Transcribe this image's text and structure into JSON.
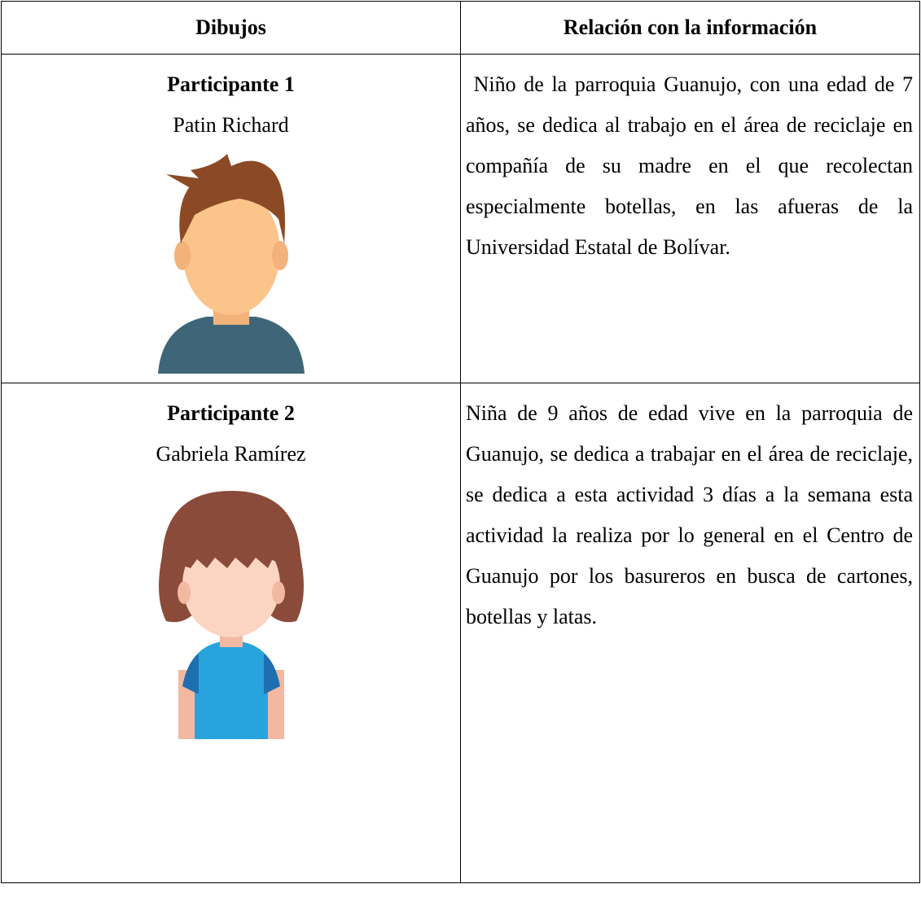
{
  "table": {
    "header": [
      "Dibujos",
      "Relación con la información"
    ],
    "rows": [
      {
        "title": "Participante 1",
        "name": "Patin Richard",
        "description": " Niño de la parroquia Guanujo, con una edad de 7 años, se dedica al trabajo en el área de reciclaje en compañía de su madre en el que recolectan especialmente botellas, en las afueras de la Universidad Estatal de Bolívar."
      },
      {
        "title": "Participante 2",
        "name": "Gabriela Ramírez",
        "description": "Niña de 9 años de edad vive en la parroquia de Guanujo, se dedica a trabajar en el área de reciclaje, se dedica a esta actividad 3 días a la semana esta actividad la realiza por lo general en el Centro de Guanujo por los basureros en busca de cartones, botellas y latas."
      }
    ]
  }
}
